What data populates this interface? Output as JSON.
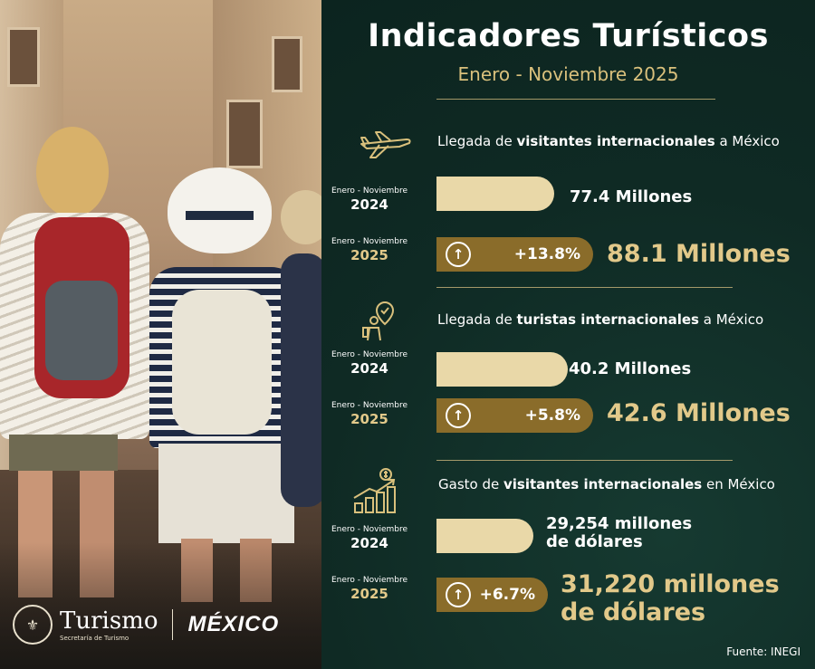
{
  "header": {
    "title": "Indicadores Turísticos",
    "subtitle": "Enero - Noviembre 2025"
  },
  "period_label": "Enero - Noviembre",
  "sections": [
    {
      "icon": "airplane-icon",
      "heading_pre": "Llegada de",
      "heading_bold": "visitantes internacionales",
      "heading_post": "a México",
      "year_prev": "2024",
      "value_prev": "77.4 Millones",
      "year_curr": "2025",
      "growth": "+13.8%",
      "value_curr": "88.1 Millones"
    },
    {
      "icon": "tourist-location-icon",
      "heading_pre": "Llegada de",
      "heading_bold": "turistas internacionales",
      "heading_post": "a México",
      "year_prev": "2024",
      "value_prev": "40.2 Millones",
      "year_curr": "2025",
      "growth": "+5.8%",
      "value_curr": "42.6 Millones"
    },
    {
      "icon": "money-growth-chart-icon",
      "heading_pre": "Gasto de",
      "heading_bold": "visitantes internacionales",
      "heading_post": "en México",
      "year_prev": "2024",
      "value_prev_line1": "29,254 millones",
      "value_prev_line2": "de dólares",
      "year_curr": "2025",
      "growth": "+6.7%",
      "value_curr_line1": "31,220 millones",
      "value_curr_line2": "de dólares"
    }
  ],
  "footer": {
    "source": "Fuente: INEGI",
    "logo_turismo": "Turismo",
    "logo_turismo_sub": "Secretaría de Turismo",
    "logo_mexico": "MÉXICO"
  },
  "colors": {
    "background": "#0f2a24",
    "gold": "#e2c98a",
    "bar_2024": "#e9d8a8",
    "bar_2025": "#8a6c2a"
  }
}
